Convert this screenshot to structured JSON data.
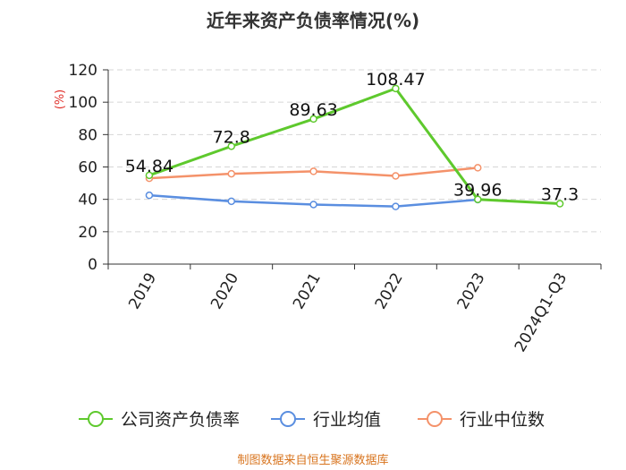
{
  "chart_data": {
    "type": "line",
    "title": "近年来资产负债率情况(%)",
    "ylabel": "(%)",
    "categories": [
      "2019",
      "2020",
      "2021",
      "2022",
      "2023",
      "2024Q1-Q3"
    ],
    "ylim": [
      0,
      120
    ],
    "yticks": [
      0,
      20,
      40,
      60,
      80,
      100,
      120
    ],
    "grid": true,
    "legend_position": "bottom",
    "series": [
      {
        "name": "公司资产负债率",
        "color": "#5ec92d",
        "values": [
          54.84,
          72.8,
          89.63,
          108.47,
          39.96,
          37.3
        ],
        "labels": [
          "54.84",
          "72.8",
          "89.63",
          "108.47",
          "39.96",
          "37.3"
        ]
      },
      {
        "name": "行业均值",
        "color": "#5a8ee0",
        "values": [
          42.5,
          38.8,
          36.8,
          35.6,
          39.8,
          null
        ]
      },
      {
        "name": "行业中位数",
        "color": "#f4926a",
        "values": [
          53.0,
          55.8,
          57.3,
          54.5,
          59.5,
          null
        ]
      }
    ]
  },
  "footer": "制图数据来自恒生聚源数据库"
}
